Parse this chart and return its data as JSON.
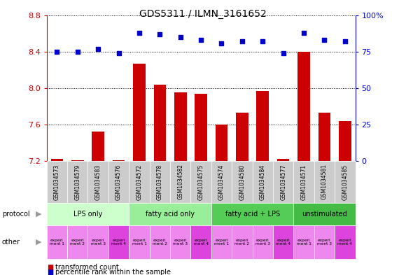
{
  "title": "GDS5311 / ILMN_3161652",
  "samples": [
    "GSM1034573",
    "GSM1034579",
    "GSM1034583",
    "GSM1034576",
    "GSM1034572",
    "GSM1034578",
    "GSM1034582",
    "GSM1034575",
    "GSM1034574",
    "GSM1034580",
    "GSM1034584",
    "GSM1034577",
    "GSM1034571",
    "GSM1034581",
    "GSM1034585"
  ],
  "transformed_count": [
    7.22,
    7.21,
    7.52,
    7.21,
    8.27,
    8.04,
    7.95,
    7.94,
    7.6,
    7.73,
    7.97,
    7.22,
    8.4,
    7.73,
    7.64
  ],
  "percentile_rank": [
    75,
    75,
    77,
    74,
    88,
    87,
    85,
    83,
    81,
    82,
    82,
    74,
    88,
    83,
    82
  ],
  "bar_color": "#cc0000",
  "dot_color": "#0000cc",
  "ylim_left": [
    7.2,
    8.8
  ],
  "ylim_right": [
    0,
    100
  ],
  "yticks_left": [
    7.2,
    7.6,
    8.0,
    8.4,
    8.8
  ],
  "yticks_right": [
    0,
    25,
    50,
    75,
    100
  ],
  "protocol_groups": [
    {
      "label": "LPS only",
      "start": 0,
      "end": 4,
      "color": "#ccffcc"
    },
    {
      "label": "fatty acid only",
      "start": 4,
      "end": 8,
      "color": "#99ee99"
    },
    {
      "label": "fatty acid + LPS",
      "start": 8,
      "end": 12,
      "color": "#55cc55"
    },
    {
      "label": "unstimulated",
      "start": 12,
      "end": 15,
      "color": "#44bb44"
    }
  ],
  "other_labels": [
    "experi\nment 1",
    "experi\nment 2",
    "experi\nment 3",
    "experi\nment 4",
    "experi\nment 1",
    "experi\nment 2",
    "experi\nment 3",
    "experi\nment 4",
    "experi\nment 1",
    "experi\nment 2",
    "experi\nment 3",
    "experi\nment 4",
    "experi\nment 1",
    "experi\nment 3",
    "experi\nment 4"
  ],
  "other_colors": [
    "#ee88ee",
    "#ee88ee",
    "#ee88ee",
    "#dd44dd",
    "#ee88ee",
    "#ee88ee",
    "#ee88ee",
    "#dd44dd",
    "#ee88ee",
    "#ee88ee",
    "#ee88ee",
    "#dd44dd",
    "#ee88ee",
    "#ee88ee",
    "#dd44dd"
  ],
  "bg_color": "#ffffff",
  "xticklabel_bg": "#cccccc",
  "bar_width": 0.6,
  "figsize": [
    5.8,
    3.93
  ],
  "dpi": 100
}
